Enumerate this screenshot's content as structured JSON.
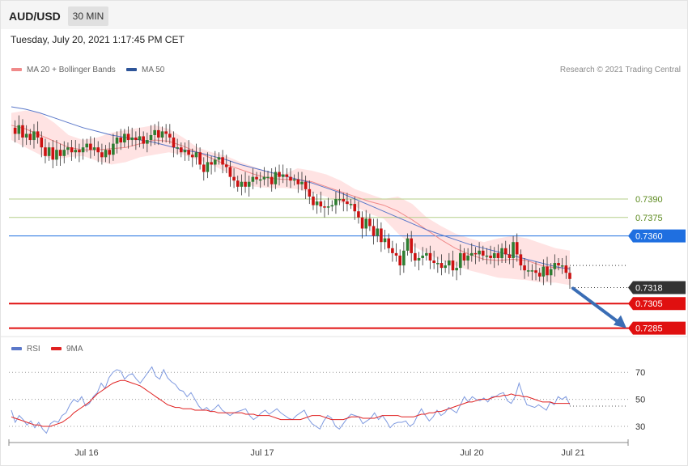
{
  "header": {
    "pair": "AUD/USD",
    "timeframe": "30 MIN",
    "timestamp": "Tuesday, July 20, 2021 1:17:45 PM CET"
  },
  "legend": {
    "ma20": "MA 20 + Bollinger Bands",
    "ma50": "MA 50",
    "rsi": "RSI",
    "rsi_ma": "9MA",
    "copyright": "Research © 2021 Trading Central"
  },
  "colors": {
    "up": "#2e7d32",
    "down": "#cc1111",
    "ma20": "#f08a8a",
    "ma50": "#5b78c9",
    "band": "#ffd9d9",
    "resistance": "#b5cf8a",
    "pivot": "#1f6fe0",
    "support": "#e01010",
    "current": "#333333",
    "rsi": "#7f9ae0",
    "rsi_ma": "#e02020",
    "arrow": "#3a6db5"
  },
  "chart_data": [
    {
      "type": "candlestick",
      "title": "AUD/USD",
      "interval": "30 MIN",
      "x_ticks": [
        "Jul 16",
        "Jul 17",
        "Jul 20",
        "Jul 21"
      ],
      "levels": [
        {
          "value": 0.739,
          "label": "0.7390",
          "kind": "resistance"
        },
        {
          "value": 0.7375,
          "label": "0.7375",
          "kind": "resistance"
        },
        {
          "value": 0.736,
          "label": "0.7360",
          "kind": "pivot"
        },
        {
          "value": 0.7318,
          "label": "0.7318",
          "kind": "current"
        },
        {
          "value": 0.7305,
          "label": "0.7305",
          "kind": "support"
        },
        {
          "value": 0.7285,
          "label": "0.7285",
          "kind": "support"
        }
      ],
      "close_path": [
        0.7448,
        0.7443,
        0.745,
        0.744,
        0.7443,
        0.7438,
        0.7445,
        0.744,
        0.7432,
        0.7425,
        0.7432,
        0.7422,
        0.743,
        0.7425,
        0.743,
        0.7432,
        0.7428,
        0.743,
        0.7428,
        0.7432,
        0.7435,
        0.743,
        0.7432,
        0.7428,
        0.7424,
        0.743,
        0.7426,
        0.7435,
        0.744,
        0.7436,
        0.7443,
        0.7438,
        0.744,
        0.7438,
        0.7441,
        0.7435,
        0.7438,
        0.7442,
        0.7446,
        0.744,
        0.7445,
        0.7443,
        0.744,
        0.7432,
        0.7432,
        0.7428,
        0.743,
        0.7426,
        0.7424,
        0.7428,
        0.7418,
        0.7412,
        0.742,
        0.7418,
        0.7422,
        0.7424,
        0.7418,
        0.7416,
        0.7408,
        0.7405,
        0.74,
        0.7404,
        0.74,
        0.7404,
        0.7408,
        0.7406,
        0.7406,
        0.7408,
        0.7408,
        0.7402,
        0.7412,
        0.7408,
        0.741,
        0.7408,
        0.7405,
        0.7406,
        0.7402,
        0.7404,
        0.7398,
        0.7392,
        0.7385,
        0.7388,
        0.7384,
        0.7383,
        0.7384,
        0.7385,
        0.739,
        0.739,
        0.7388,
        0.7386,
        0.7386,
        0.738,
        0.7375,
        0.7366,
        0.7374,
        0.7368,
        0.736,
        0.7366,
        0.7355,
        0.7358,
        0.735,
        0.7346,
        0.7344,
        0.7336,
        0.7348,
        0.7358,
        0.7346,
        0.734,
        0.7342,
        0.7344,
        0.7346,
        0.734,
        0.7338,
        0.7338,
        0.7334,
        0.7336,
        0.734,
        0.7332,
        0.7334,
        0.7346,
        0.734,
        0.7344,
        0.7346,
        0.7345,
        0.7348,
        0.7344,
        0.7344,
        0.7342,
        0.7346,
        0.7342,
        0.735,
        0.7345,
        0.7342,
        0.7355,
        0.7345,
        0.7336,
        0.7332,
        0.7332,
        0.7332,
        0.733,
        0.7327,
        0.7335,
        0.7328,
        0.7333,
        0.7338,
        0.7336,
        0.7336,
        0.733,
        0.7325
      ],
      "ma20_path": [
        0.745,
        0.7447,
        0.7442,
        0.7437,
        0.7432,
        0.743,
        0.743,
        0.7431,
        0.7432,
        0.7435,
        0.7438,
        0.7437,
        0.7433,
        0.7428,
        0.7423,
        0.7418,
        0.7414,
        0.741,
        0.7407,
        0.7406,
        0.7406,
        0.7404,
        0.74,
        0.7396,
        0.7392,
        0.7388,
        0.7385,
        0.738,
        0.7373,
        0.7365,
        0.7357,
        0.735,
        0.7345,
        0.7341,
        0.734,
        0.7341,
        0.734,
        0.7336,
        0.7334,
        0.7334
      ],
      "ma50_path": [
        0.7465,
        0.7463,
        0.746,
        0.7456,
        0.7452,
        0.7448,
        0.7445,
        0.7442,
        0.744,
        0.7438,
        0.7436,
        0.7433,
        0.743,
        0.7428,
        0.7425,
        0.7422,
        0.7418,
        0.7415,
        0.7412,
        0.7409,
        0.7406,
        0.7403,
        0.7399,
        0.7395,
        0.739,
        0.7385,
        0.738,
        0.7375,
        0.737,
        0.7365,
        0.7361,
        0.7357,
        0.7353,
        0.735,
        0.7347,
        0.7344,
        0.7341,
        0.7338,
        0.7335,
        0.7333
      ],
      "upper_band_path": [
        0.746,
        0.7462,
        0.746,
        0.7452,
        0.7442,
        0.7438,
        0.744,
        0.7444,
        0.7446,
        0.7448,
        0.745,
        0.7447,
        0.744,
        0.7432,
        0.7428,
        0.7425,
        0.742,
        0.7416,
        0.7412,
        0.741,
        0.7415,
        0.7413,
        0.741,
        0.7405,
        0.7398,
        0.7394,
        0.739,
        0.7392,
        0.7386,
        0.7375,
        0.7368,
        0.7362,
        0.7358,
        0.7355,
        0.7358,
        0.736,
        0.7358,
        0.7354,
        0.735,
        0.7348
      ],
      "lower_band_path": [
        0.7438,
        0.7432,
        0.7426,
        0.7422,
        0.7424,
        0.7425,
        0.7421,
        0.7418,
        0.742,
        0.7424,
        0.7426,
        0.7428,
        0.7426,
        0.7422,
        0.7418,
        0.7412,
        0.7404,
        0.74,
        0.7399,
        0.7399,
        0.7398,
        0.7395,
        0.7392,
        0.7387,
        0.7384,
        0.7378,
        0.7374,
        0.7362,
        0.7352,
        0.7346,
        0.734,
        0.7336,
        0.7332,
        0.7329,
        0.7326,
        0.7325,
        0.7324,
        0.7322,
        0.7322,
        0.732
      ],
      "forecast": {
        "from": 0.7318,
        "to": 0.7285,
        "direction": "down"
      }
    },
    {
      "type": "line",
      "title": "RSI",
      "y_ticks": [
        70,
        50,
        30
      ],
      "ylim": [
        20,
        80
      ],
      "series": [
        {
          "name": "RSI",
          "values": [
            42,
            33,
            38,
            35,
            31,
            34,
            29,
            33,
            28,
            25,
            32,
            34,
            33,
            38,
            40,
            46,
            50,
            48,
            52,
            45,
            47,
            52,
            55,
            62,
            58,
            66,
            70,
            72,
            71,
            65,
            68,
            69,
            65,
            62,
            66,
            70,
            74,
            67,
            65,
            72,
            66,
            63,
            61,
            57,
            56,
            52,
            55,
            50,
            45,
            42,
            44,
            41,
            43,
            46,
            42,
            40,
            38,
            40,
            41,
            42,
            43,
            38,
            35,
            37,
            40,
            42,
            39,
            41,
            43,
            40,
            38,
            36,
            35,
            38,
            40,
            42,
            36,
            32,
            30,
            28,
            34,
            38,
            36,
            30,
            28,
            32,
            36,
            39,
            38,
            37,
            32,
            34,
            36,
            40,
            35,
            38,
            34,
            29,
            32,
            33,
            33,
            34,
            30,
            32,
            38,
            43,
            38,
            34,
            37,
            42,
            38,
            40,
            44,
            42,
            40,
            46,
            52,
            48,
            52,
            50,
            49,
            51,
            48,
            52,
            52,
            54,
            55,
            49,
            47,
            52,
            62,
            53,
            46,
            45,
            44,
            46,
            44,
            42,
            48,
            46,
            52,
            50,
            52,
            46
          ]
        },
        {
          "name": "9MA",
          "values": [
            37,
            36,
            35,
            34,
            33,
            32,
            31,
            31,
            30,
            30,
            30,
            31,
            32,
            33,
            35,
            37,
            40,
            42,
            44,
            46,
            48,
            51,
            54,
            56,
            58,
            60,
            62,
            63,
            64,
            64,
            63,
            62,
            61,
            60,
            58,
            56,
            54,
            52,
            50,
            48,
            46,
            45,
            44,
            44,
            43,
            43,
            43,
            42,
            42,
            42,
            42,
            41,
            41,
            40,
            40,
            40,
            40,
            40,
            40,
            40,
            39,
            39,
            39,
            38,
            38,
            38,
            38,
            37,
            36,
            35,
            35,
            35,
            35,
            35,
            35,
            36,
            37,
            38,
            38,
            38,
            37,
            36,
            35,
            35,
            35,
            35,
            36,
            37,
            37,
            37,
            36,
            36,
            36,
            36,
            37,
            38,
            38,
            38,
            38,
            38,
            37,
            37,
            37,
            37,
            38,
            39,
            39,
            40,
            40,
            41,
            41,
            42,
            43,
            44,
            45,
            46,
            47,
            48,
            48,
            49,
            50,
            50,
            50,
            51,
            52,
            52,
            53,
            53,
            54,
            53,
            53,
            52,
            52,
            51,
            50,
            49,
            48,
            48,
            48,
            47,
            47,
            47,
            47,
            47
          ]
        }
      ]
    }
  ]
}
